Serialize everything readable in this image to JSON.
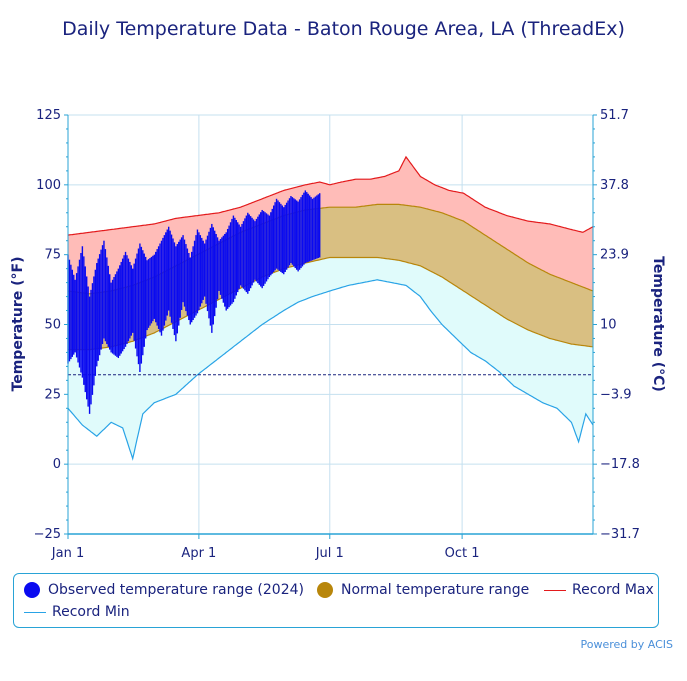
{
  "title": "Daily Temperature Data - Baton Rouge Area, LA (ThreadEx)",
  "credit": "Powered by ACIS",
  "chart_data": {
    "type": "area",
    "title": "Daily Temperature Data - Baton Rouge Area, LA (ThreadEx)",
    "xlabel": "",
    "ylabel": "Temperature (°F)",
    "y2label": "Temperature (°C)",
    "ylim": [
      -25,
      125
    ],
    "y_ticks": [
      -25,
      0,
      25,
      50,
      75,
      100,
      125
    ],
    "y_tick_labels": [
      "−25",
      "0",
      "25",
      "50",
      "75",
      "100",
      "125"
    ],
    "y2_tick_labels": [
      "−31.7",
      "−17.8",
      "−3.9",
      "10",
      "23.9",
      "37.8",
      "51.7"
    ],
    "x_range_days": [
      0,
      365
    ],
    "x_ticks": [
      {
        "label": "Jan 1",
        "day": 0
      },
      {
        "label": "Apr 1",
        "day": 91
      },
      {
        "label": "Jul 1",
        "day": 182
      },
      {
        "label": "Oct 1",
        "day": 274
      }
    ],
    "freezing_line_f": 32,
    "legend": [
      "Observed temperature range (2024)",
      "Normal temperature range",
      "Record Max",
      "Record Min"
    ],
    "colors": {
      "observed": "#0a0af0",
      "normal": "#d9bf82",
      "normal_edge": "#b8860b",
      "normal_legend": "#b8860b",
      "record_max_line": "#e31a1c",
      "record_max_fill": "#ffbcb8",
      "record_min_line": "#29a3e6",
      "record_min_fill": "#e0fbfb",
      "grid": "#c5e0ef",
      "axis": "#29a3d6",
      "freeze": "#1a237e"
    },
    "series": [
      {
        "name": "Record Max",
        "x": [
          0,
          15,
          30,
          45,
          60,
          75,
          90,
          105,
          120,
          135,
          150,
          165,
          175,
          182,
          190,
          200,
          210,
          220,
          230,
          235,
          245,
          255,
          265,
          275,
          290,
          305,
          320,
          335,
          350,
          358,
          365
        ],
        "values": [
          82,
          83,
          84,
          85,
          86,
          88,
          89,
          90,
          92,
          95,
          98,
          100,
          101,
          100,
          101,
          102,
          102,
          103,
          105,
          110,
          103,
          100,
          98,
          97,
          92,
          89,
          87,
          86,
          84,
          83,
          85
        ]
      },
      {
        "name": "Normal High",
        "x": [
          0,
          15,
          30,
          45,
          60,
          75,
          90,
          105,
          120,
          135,
          150,
          165,
          182,
          200,
          215,
          230,
          245,
          260,
          275,
          290,
          305,
          320,
          335,
          350,
          365
        ],
        "values": [
          62,
          61,
          62,
          64,
          67,
          71,
          75,
          79,
          83,
          86,
          89,
          91,
          92,
          92,
          93,
          93,
          92,
          90,
          87,
          82,
          77,
          72,
          68,
          65,
          62
        ]
      },
      {
        "name": "Normal Low",
        "x": [
          0,
          15,
          30,
          45,
          60,
          75,
          90,
          105,
          120,
          135,
          150,
          165,
          182,
          200,
          215,
          230,
          245,
          260,
          275,
          290,
          305,
          320,
          335,
          350,
          365
        ],
        "values": [
          41,
          41,
          42,
          44,
          47,
          51,
          55,
          59,
          63,
          67,
          70,
          72,
          74,
          74,
          74,
          73,
          71,
          67,
          62,
          57,
          52,
          48,
          45,
          43,
          42
        ]
      },
      {
        "name": "Record Min",
        "x": [
          0,
          10,
          20,
          30,
          38,
          45,
          52,
          60,
          75,
          90,
          105,
          120,
          135,
          150,
          160,
          170,
          182,
          195,
          205,
          215,
          225,
          235,
          245,
          252,
          260,
          270,
          280,
          290,
          300,
          310,
          320,
          330,
          340,
          350,
          355,
          360,
          365
        ],
        "values": [
          20,
          14,
          10,
          15,
          13,
          2,
          18,
          22,
          25,
          32,
          38,
          44,
          50,
          55,
          58,
          60,
          62,
          64,
          65,
          66,
          65,
          64,
          60,
          55,
          50,
          45,
          40,
          37,
          33,
          28,
          25,
          22,
          20,
          15,
          8,
          18,
          14
        ]
      },
      {
        "name": "Observed High (2024)",
        "x": [
          0,
          5,
          10,
          15,
          20,
          25,
          30,
          35,
          40,
          45,
          50,
          55,
          60,
          65,
          70,
          75,
          80,
          85,
          90,
          95,
          100,
          105,
          110,
          115,
          120,
          125,
          130,
          135,
          140,
          145,
          150,
          155,
          160,
          165,
          170,
          175
        ],
        "values": [
          75,
          66,
          78,
          60,
          72,
          80,
          65,
          70,
          76,
          70,
          79,
          73,
          75,
          80,
          85,
          78,
          82,
          74,
          84,
          79,
          86,
          80,
          83,
          89,
          85,
          90,
          87,
          91,
          89,
          95,
          92,
          96,
          94,
          98,
          95,
          97
        ]
      },
      {
        "name": "Observed Low (2024)",
        "x": [
          0,
          5,
          10,
          15,
          20,
          25,
          30,
          35,
          40,
          45,
          50,
          55,
          60,
          65,
          70,
          75,
          80,
          85,
          90,
          95,
          100,
          105,
          110,
          115,
          120,
          125,
          130,
          135,
          140,
          145,
          150,
          155,
          160,
          165,
          170,
          175
        ],
        "values": [
          36,
          40,
          31,
          18,
          35,
          45,
          40,
          38,
          42,
          47,
          33,
          48,
          52,
          46,
          55,
          44,
          58,
          50,
          54,
          60,
          47,
          62,
          55,
          58,
          64,
          61,
          66,
          63,
          67,
          70,
          68,
          72,
          69,
          72,
          73,
          74
        ]
      }
    ]
  }
}
